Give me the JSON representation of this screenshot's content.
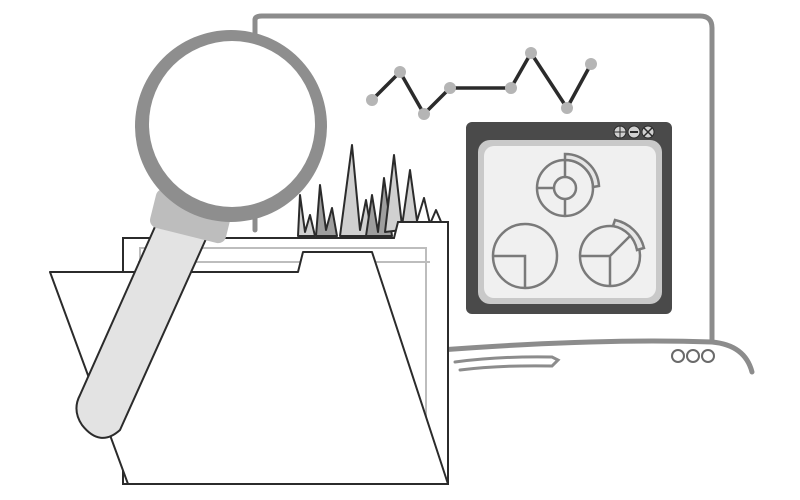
{
  "palette": {
    "background": "#ffffff",
    "outline": "#2b2b2b",
    "frame_gray": "#8c8c8c",
    "light_gray": "#d9d9d9",
    "mid_gray": "#bdbdbd",
    "screen_dark": "#4a4a4a",
    "screen_light": "#f0f0f0",
    "lens_ring": "#8e8e8e",
    "handle_fill": "#e3e3e3"
  },
  "icons": {
    "monitor": "monitor-frame-icon",
    "line_chart": "line-chart-icon",
    "window": "app-window-icon",
    "pies": "pie-chart-icon",
    "folder": "folder-icon",
    "magnifier": "magnifying-glass-icon",
    "waveform": "spike-chart-icon"
  }
}
